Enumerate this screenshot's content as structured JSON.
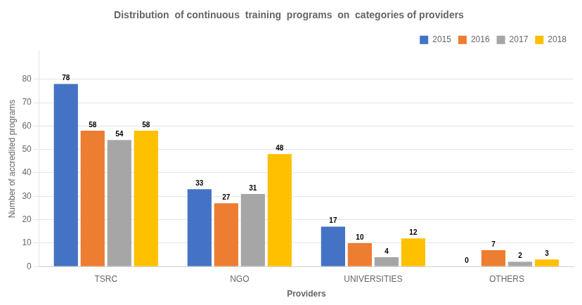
{
  "chart_data": {
    "type": "bar",
    "title": "Distribution  of continuous  training  programs  on  categories of providers",
    "xlabel": "Providers",
    "ylabel": "Number of accredited programs",
    "categories": [
      "TSRC",
      "NGO",
      "UNIVERSITIES",
      "OTHERS"
    ],
    "series": [
      {
        "name": "2015",
        "color": "#4472C4",
        "values": [
          78,
          33,
          17,
          0
        ]
      },
      {
        "name": "2016",
        "color": "#ED7D31",
        "values": [
          58,
          27,
          10,
          7
        ]
      },
      {
        "name": "2017",
        "color": "#A6A6A6",
        "values": [
          54,
          31,
          4,
          2
        ]
      },
      {
        "name": "2018",
        "color": "#FFC000",
        "values": [
          58,
          48,
          12,
          3
        ]
      }
    ],
    "ylim": [
      0,
      92
    ],
    "yticks": [
      0,
      10,
      20,
      30,
      40,
      50,
      60,
      70,
      80
    ],
    "grid": true,
    "legend": "upper right",
    "data_labels": true
  }
}
